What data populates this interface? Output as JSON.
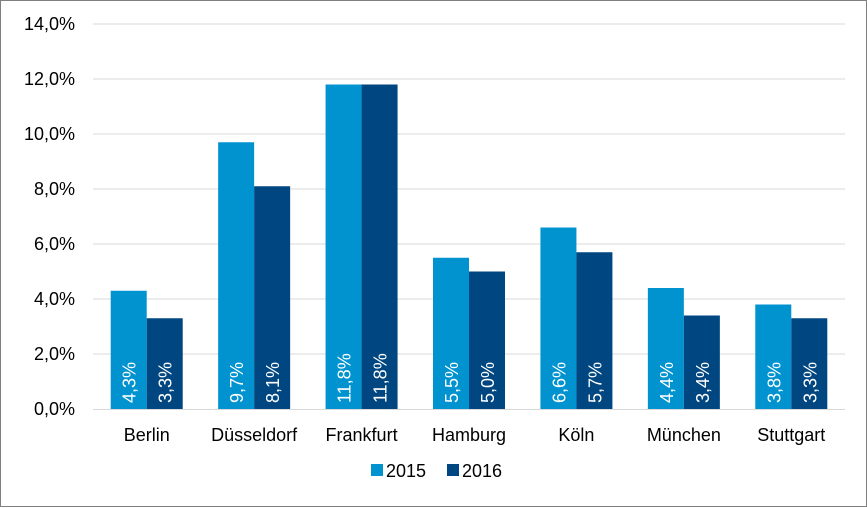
{
  "chart_data": {
    "type": "bar",
    "categories": [
      "Berlin",
      "Düsseldorf",
      "Frankfurt",
      "Hamburg",
      "Köln",
      "München",
      "Stuttgart"
    ],
    "series": [
      {
        "name": "2015",
        "color": "#0093d0",
        "values": [
          4.3,
          9.7,
          11.8,
          5.5,
          6.6,
          4.4,
          3.8
        ],
        "labels": [
          "4,3%",
          "9,7%",
          "11,8%",
          "5,5%",
          "6,6%",
          "4,4%",
          "3,8%"
        ]
      },
      {
        "name": "2016",
        "color": "#004680",
        "values": [
          3.3,
          8.1,
          11.8,
          5.0,
          5.7,
          3.4,
          3.3
        ],
        "labels": [
          "3,3%",
          "8,1%",
          "11,8%",
          "5,0%",
          "5,7%",
          "3,4%",
          "3,3%"
        ]
      }
    ],
    "ylim": [
      0,
      14
    ],
    "yticks": [
      0,
      2,
      4,
      6,
      8,
      10,
      12,
      14
    ],
    "ytick_labels": [
      "0,0%",
      "2,0%",
      "4,0%",
      "6,0%",
      "8,0%",
      "10,0%",
      "12,0%",
      "14,0%"
    ],
    "grid": true,
    "legend_position": "bottom",
    "title": "",
    "xlabel": "",
    "ylabel": ""
  }
}
